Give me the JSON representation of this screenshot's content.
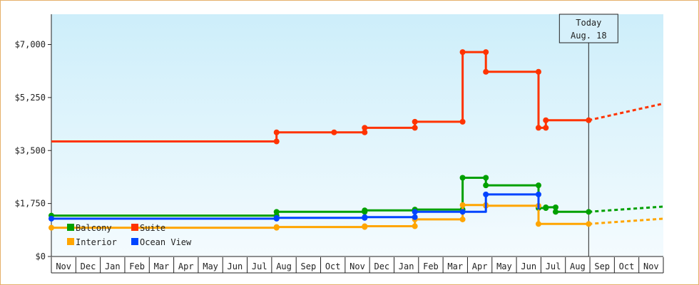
{
  "chart_data": {
    "type": "line",
    "title": "",
    "xlabel": "",
    "ylabel": "",
    "ylim": [
      0,
      8000
    ],
    "y_ticks": [
      {
        "value": 0,
        "label": "$0"
      },
      {
        "value": 1750,
        "label": "$1,750"
      },
      {
        "value": 3500,
        "label": "$3,500"
      },
      {
        "value": 5250,
        "label": "$5,250"
      },
      {
        "value": 7000,
        "label": "$7,000"
      }
    ],
    "x_range": [
      0,
      25
    ],
    "months": [
      "Nov",
      "Dec",
      "Jan",
      "Feb",
      "Mar",
      "Apr",
      "May",
      "Jun",
      "Jul",
      "Aug",
      "Sep",
      "Oct",
      "Nov",
      "Dec",
      "Jan",
      "Feb",
      "Mar",
      "Apr",
      "May",
      "Jun",
      "Jul",
      "Aug",
      "Sep",
      "Oct",
      "Nov"
    ],
    "today": {
      "x": 21.95,
      "line1": "Today",
      "line2": "Aug. 18"
    },
    "legend_position": "bottom-left",
    "grid": false,
    "series": [
      {
        "name": "Suite",
        "color": "#ff3300",
        "points": [
          [
            0,
            3800
          ],
          [
            9.2,
            3800
          ],
          [
            9.2,
            4100
          ],
          [
            11.55,
            4100
          ],
          [
            12.8,
            4100
          ],
          [
            12.8,
            4250
          ],
          [
            14.85,
            4250
          ],
          [
            14.85,
            4450
          ],
          [
            16.8,
            4450
          ],
          [
            16.8,
            6750
          ],
          [
            17.75,
            6750
          ],
          [
            17.75,
            6100
          ],
          [
            19.9,
            6100
          ],
          [
            19.9,
            4250
          ],
          [
            20.2,
            4250
          ],
          [
            20.2,
            4500
          ],
          [
            21.95,
            4500
          ]
        ],
        "markers": [
          [
            9.2,
            3800
          ],
          [
            9.2,
            4100
          ],
          [
            11.55,
            4100
          ],
          [
            12.8,
            4100
          ],
          [
            12.8,
            4250
          ],
          [
            14.85,
            4250
          ],
          [
            14.85,
            4450
          ],
          [
            16.8,
            4450
          ],
          [
            16.8,
            6750
          ],
          [
            17.75,
            6750
          ],
          [
            17.75,
            6100
          ],
          [
            19.9,
            6100
          ],
          [
            19.9,
            4250
          ],
          [
            20.2,
            4250
          ],
          [
            20.2,
            4500
          ],
          [
            21.95,
            4500
          ]
        ],
        "projection": [
          [
            21.95,
            4500
          ],
          [
            25,
            5050
          ]
        ]
      },
      {
        "name": "Balcony",
        "color": "#00a000",
        "points": [
          [
            0,
            1350
          ],
          [
            9.2,
            1350
          ],
          [
            9.2,
            1475
          ],
          [
            12.8,
            1475
          ],
          [
            12.8,
            1525
          ],
          [
            14.85,
            1525
          ],
          [
            14.85,
            1550
          ],
          [
            16.8,
            1550
          ],
          [
            16.8,
            2600
          ],
          [
            17.75,
            2600
          ],
          [
            17.75,
            2350
          ],
          [
            19.9,
            2350
          ],
          [
            19.9,
            1600
          ],
          [
            20.2,
            1600
          ],
          [
            20.2,
            1625
          ],
          [
            20.6,
            1625
          ],
          [
            20.6,
            1475
          ],
          [
            21.95,
            1475
          ]
        ],
        "markers": [
          [
            0,
            1350
          ],
          [
            9.2,
            1350
          ],
          [
            9.2,
            1475
          ],
          [
            12.8,
            1475
          ],
          [
            12.8,
            1525
          ],
          [
            14.85,
            1525
          ],
          [
            14.85,
            1550
          ],
          [
            16.8,
            1550
          ],
          [
            16.8,
            2600
          ],
          [
            17.75,
            2600
          ],
          [
            17.75,
            2350
          ],
          [
            19.9,
            2350
          ],
          [
            19.9,
            1600
          ],
          [
            20.2,
            1600
          ],
          [
            20.2,
            1625
          ],
          [
            20.6,
            1625
          ],
          [
            20.6,
            1475
          ],
          [
            21.95,
            1475
          ]
        ],
        "projection": [
          [
            21.95,
            1475
          ],
          [
            25,
            1650
          ]
        ]
      },
      {
        "name": "Interior",
        "color": "#ffa500",
        "points": [
          [
            0,
            950
          ],
          [
            9.2,
            950
          ],
          [
            9.2,
            975
          ],
          [
            12.8,
            975
          ],
          [
            12.8,
            1000
          ],
          [
            14.85,
            1000
          ],
          [
            14.85,
            1225
          ],
          [
            16.8,
            1225
          ],
          [
            16.8,
            1700
          ],
          [
            17.75,
            1700
          ],
          [
            17.75,
            1675
          ],
          [
            19.9,
            1675
          ],
          [
            19.9,
            1075
          ],
          [
            21.95,
            1075
          ]
        ],
        "markers": [
          [
            0,
            950
          ],
          [
            9.2,
            950
          ],
          [
            9.2,
            975
          ],
          [
            12.8,
            975
          ],
          [
            12.8,
            1000
          ],
          [
            14.85,
            1000
          ],
          [
            14.85,
            1225
          ],
          [
            16.8,
            1225
          ],
          [
            16.8,
            1700
          ],
          [
            17.75,
            1700
          ],
          [
            17.75,
            1675
          ],
          [
            19.9,
            1675
          ],
          [
            19.9,
            1075
          ],
          [
            21.95,
            1075
          ]
        ],
        "projection": [
          [
            21.95,
            1075
          ],
          [
            25,
            1250
          ]
        ]
      },
      {
        "name": "Ocean View",
        "color": "#0044ff",
        "points": [
          [
            0,
            1250
          ],
          [
            9.2,
            1250
          ],
          [
            9.2,
            1275
          ],
          [
            12.8,
            1275
          ],
          [
            12.8,
            1300
          ],
          [
            14.85,
            1300
          ],
          [
            14.85,
            1475
          ],
          [
            16.8,
            1475
          ],
          [
            17.75,
            1475
          ],
          [
            17.75,
            2050
          ],
          [
            19.9,
            2050
          ],
          [
            19.9,
            1550
          ]
        ],
        "markers": [
          [
            0,
            1250
          ],
          [
            9.2,
            1250
          ],
          [
            9.2,
            1275
          ],
          [
            12.8,
            1275
          ],
          [
            12.8,
            1300
          ],
          [
            14.85,
            1300
          ],
          [
            14.85,
            1475
          ],
          [
            16.8,
            1475
          ],
          [
            17.75,
            2050
          ],
          [
            19.9,
            2050
          ]
        ],
        "projection": []
      }
    ]
  }
}
